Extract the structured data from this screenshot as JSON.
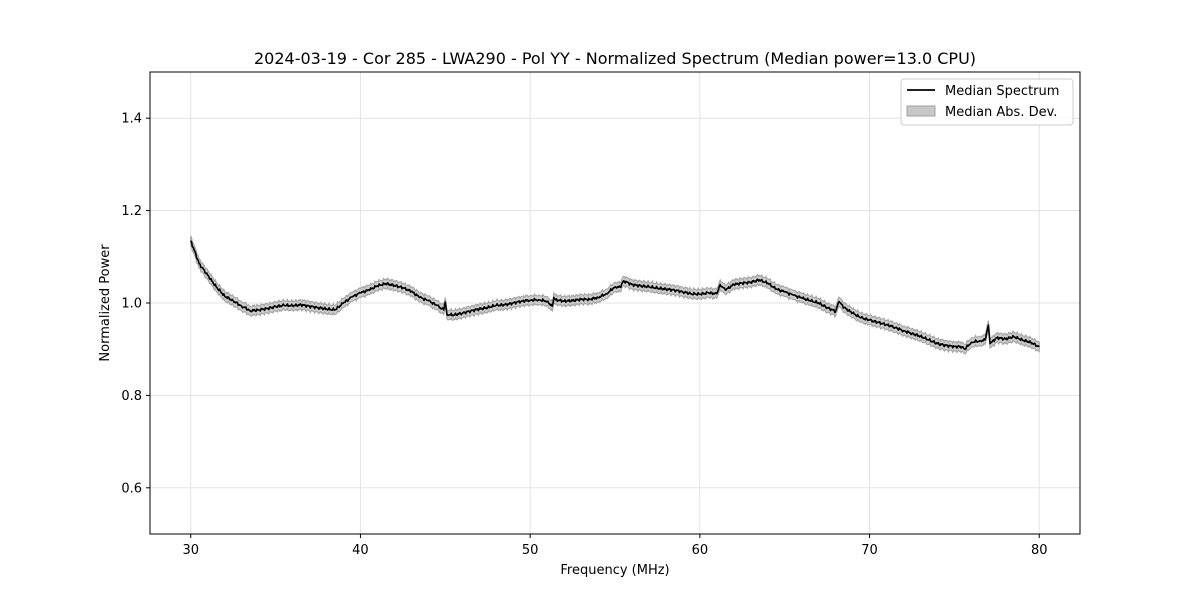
{
  "chart_data": {
    "type": "line",
    "title": "2024-03-19 - Cor 285 - LWA290 - Pol YY - Normalized Spectrum (Median power=13.0 CPU)",
    "xlabel": "Frequency (MHz)",
    "ylabel": "Normalized Power",
    "xlim": [
      27.6,
      82.4
    ],
    "ylim": [
      0.5,
      1.5
    ],
    "x_ticks": [
      30,
      40,
      50,
      60,
      70,
      80
    ],
    "y_ticks": [
      0.6,
      0.8,
      1.0,
      1.2,
      1.4
    ],
    "x_tick_labels": [
      "30",
      "40",
      "50",
      "60",
      "70",
      "80"
    ],
    "y_tick_labels": [
      "0.6",
      "0.8",
      "1.0",
      "1.2",
      "1.4"
    ],
    "grid": true,
    "legend_position": "top-right",
    "legend": [
      "Median Spectrum",
      "Median Abs. Dev."
    ],
    "colors": {
      "line": "#000000",
      "band": "#c8c8c8",
      "band_edge": "#a0a0a0",
      "grid": "#e3e3e3"
    },
    "mad_width": 0.01,
    "series": [
      {
        "name": "Median Spectrum",
        "x": [
          30.0,
          30.2,
          30.5,
          31.0,
          31.5,
          32.0,
          32.5,
          33.0,
          33.2,
          33.5,
          34.0,
          34.5,
          35.0,
          35.5,
          36.0,
          36.5,
          37.0,
          37.5,
          38.0,
          38.5,
          39.0,
          39.5,
          40.0,
          40.5,
          41.0,
          41.5,
          42.0,
          42.5,
          43.0,
          43.5,
          44.0,
          44.5,
          44.9,
          45.0,
          45.1,
          45.5,
          46.0,
          46.5,
          47.0,
          47.5,
          48.0,
          48.5,
          49.0,
          49.5,
          50.0,
          50.5,
          51.0,
          51.3,
          51.4,
          51.5,
          52.0,
          52.5,
          53.0,
          53.5,
          54.0,
          54.5,
          55.0,
          55.3,
          55.5,
          56.0,
          56.5,
          57.0,
          57.5,
          58.0,
          58.5,
          59.0,
          59.5,
          60.0,
          60.5,
          61.0,
          61.2,
          61.5,
          62.0,
          62.5,
          63.0,
          63.5,
          64.0,
          64.5,
          65.0,
          65.5,
          66.0,
          66.5,
          67.0,
          67.5,
          68.0,
          68.2,
          68.5,
          69.0,
          69.5,
          70.0,
          70.5,
          71.0,
          71.5,
          72.0,
          72.5,
          73.0,
          73.5,
          74.0,
          74.5,
          75.0,
          75.5,
          75.6,
          76.0,
          76.5,
          76.8,
          77.0,
          77.1,
          77.5,
          78.0,
          78.5,
          79.0,
          79.5,
          80.0
        ],
        "values": [
          1.135,
          1.115,
          1.085,
          1.06,
          1.035,
          1.015,
          1.005,
          0.993,
          0.99,
          0.983,
          0.985,
          0.988,
          0.992,
          0.995,
          0.994,
          0.996,
          0.993,
          0.99,
          0.987,
          0.985,
          1.0,
          1.013,
          1.022,
          1.028,
          1.037,
          1.042,
          1.038,
          1.033,
          1.025,
          1.012,
          1.005,
          0.995,
          0.985,
          1.002,
          0.975,
          0.974,
          0.978,
          0.983,
          0.987,
          0.99,
          0.995,
          0.996,
          1.0,
          1.004,
          1.006,
          1.007,
          1.004,
          0.993,
          1.012,
          1.007,
          1.004,
          1.005,
          1.008,
          1.008,
          1.012,
          1.02,
          1.035,
          1.034,
          1.048,
          1.04,
          1.037,
          1.035,
          1.032,
          1.03,
          1.028,
          1.024,
          1.02,
          1.019,
          1.022,
          1.02,
          1.04,
          1.028,
          1.04,
          1.043,
          1.045,
          1.05,
          1.043,
          1.03,
          1.024,
          1.017,
          1.011,
          1.005,
          1.0,
          0.99,
          0.982,
          1.003,
          0.99,
          0.978,
          0.968,
          0.963,
          0.958,
          0.953,
          0.947,
          0.94,
          0.934,
          0.928,
          0.92,
          0.912,
          0.908,
          0.906,
          0.905,
          0.9,
          0.915,
          0.918,
          0.92,
          0.952,
          0.912,
          0.925,
          0.922,
          0.927,
          0.92,
          0.915,
          0.905
        ]
      }
    ]
  }
}
